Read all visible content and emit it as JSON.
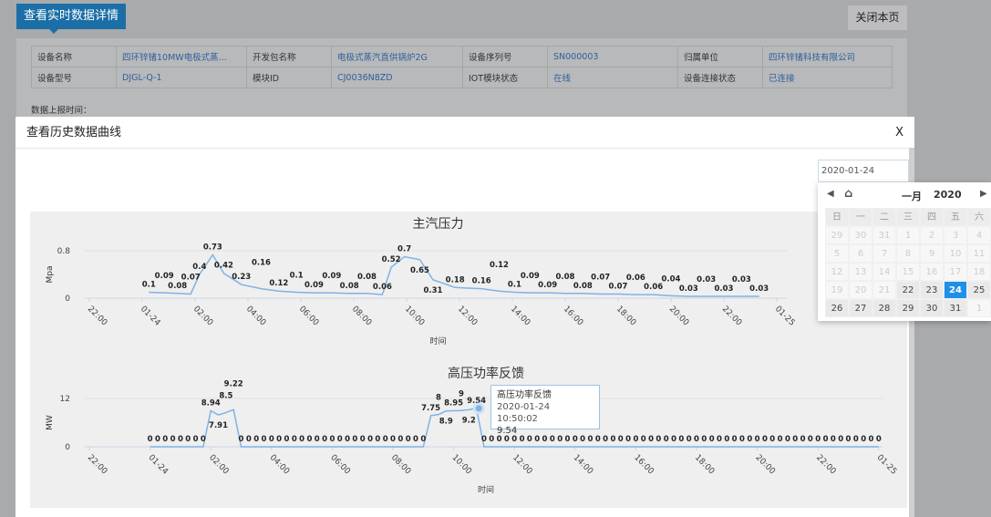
{
  "header": {
    "realtime_btn": "查看实时数据详情",
    "close_page": "关闭本页"
  },
  "info_table": [
    [
      {
        "k": "设备名称",
        "v": "四环锌锗10MW电极式蒸..."
      },
      {
        "k": "开发包名称",
        "v": "电极式蒸汽直供锅炉2G"
      },
      {
        "k": "设备序列号",
        "v": "SN000003"
      },
      {
        "k": "归属单位",
        "v": "四环锌锗科技有限公司"
      }
    ],
    [
      {
        "k": "设备型号",
        "v": "DJGL-Q-1"
      },
      {
        "k": "模块ID",
        "v": "CJ0036N8ZD"
      },
      {
        "k": "IOT模块状态",
        "v": "在线"
      },
      {
        "k": "设备连接状态",
        "v": "已连接"
      }
    ]
  ],
  "report_time_label": "数据上报时间：",
  "modal": {
    "title": "查看历史数据曲线",
    "close": "X"
  },
  "date_input": {
    "value": "2020-01-24"
  },
  "calendar": {
    "month": "一月",
    "year": "2020",
    "weekdays": [
      "日",
      "一",
      "二",
      "三",
      "四",
      "五",
      "六"
    ],
    "days": [
      [
        "29",
        "30",
        "31",
        "1",
        "2",
        "3",
        "4"
      ],
      [
        "5",
        "6",
        "7",
        "8",
        "9",
        "10",
        "11"
      ],
      [
        "12",
        "13",
        "14",
        "15",
        "16",
        "17",
        "18"
      ],
      [
        "19",
        "20",
        "21",
        "22",
        "23",
        "24",
        "25"
      ],
      [
        "26",
        "27",
        "28",
        "29",
        "30",
        "31",
        "1"
      ]
    ],
    "enabled_from": "22",
    "selected": "24"
  },
  "colors": {
    "accent": "#1b6fa6",
    "line": "#7fb2e5",
    "selected": "#1e90e8"
  },
  "chart_data": [
    {
      "type": "line",
      "title": "主汽压力",
      "ylabel": "Mpa",
      "xlabel": "时间",
      "ylim": [
        0,
        0.8
      ],
      "yticks": [
        "0",
        "0.8"
      ],
      "xticks": [
        "22:00",
        "01-24",
        "02:00",
        "04:00",
        "06:00",
        "08:00",
        "10:00",
        "12:00",
        "14:00",
        "16:00",
        "18:00",
        "20:00",
        "22:00",
        "01-25"
      ],
      "points": [
        [
          "00:15",
          0.1
        ],
        [
          "00:50",
          0.09
        ],
        [
          "01:20",
          0.08
        ],
        [
          "01:50",
          0.07
        ],
        [
          "02:10",
          0.4
        ],
        [
          "02:40",
          0.73
        ],
        [
          "03:05",
          0.42
        ],
        [
          "03:45",
          0.23
        ],
        [
          "04:30",
          0.16
        ],
        [
          "05:10",
          0.12
        ],
        [
          "05:50",
          0.1
        ],
        [
          "06:30",
          0.09
        ],
        [
          "07:10",
          0.09
        ],
        [
          "07:50",
          0.08
        ],
        [
          "08:30",
          0.08
        ],
        [
          "09:05",
          0.06
        ],
        [
          "09:25",
          0.52
        ],
        [
          "09:55",
          0.7
        ],
        [
          "10:30",
          0.65
        ],
        [
          "11:00",
          0.31
        ],
        [
          "11:50",
          0.18
        ],
        [
          "12:50",
          0.16
        ],
        [
          "13:30",
          0.12
        ],
        [
          "14:05",
          0.1
        ],
        [
          "14:40",
          0.09
        ],
        [
          "15:20",
          0.09
        ],
        [
          "16:00",
          0.08
        ],
        [
          "16:40",
          0.08
        ],
        [
          "17:20",
          0.07
        ],
        [
          "18:00",
          0.07
        ],
        [
          "18:40",
          0.06
        ],
        [
          "19:20",
          0.06
        ],
        [
          "20:00",
          0.04
        ],
        [
          "20:40",
          0.03
        ],
        [
          "21:20",
          0.03
        ],
        [
          "22:00",
          0.03
        ],
        [
          "22:40",
          0.03
        ],
        [
          "23:20",
          0.03
        ]
      ]
    },
    {
      "type": "line",
      "title": "高压功率反馈",
      "ylabel": "MW",
      "xlabel": "时间",
      "ylim": [
        0,
        12
      ],
      "yticks": [
        "0",
        "12"
      ],
      "xticks": [
        "22:00",
        "01-24",
        "02:00",
        "04:00",
        "06:00",
        "08:00",
        "10:00",
        "12:00",
        "14:00",
        "16:00",
        "18:00",
        "20:00",
        "22:00",
        "01-25"
      ],
      "start": "00:00",
      "step_minutes": 15,
      "values": [
        0,
        0,
        0,
        0,
        0,
        0,
        0,
        0,
        8.94,
        7.91,
        8.5,
        9.22,
        0,
        0,
        0,
        0,
        0,
        0,
        0,
        0,
        0,
        0,
        0,
        0,
        0,
        0,
        0,
        0,
        0,
        0,
        0,
        0,
        0,
        0,
        0,
        0,
        0,
        7.75,
        8.0,
        8.9,
        8.95,
        9.0,
        9.2,
        9.54,
        0,
        0,
        0,
        0,
        0,
        0,
        0,
        0,
        0,
        0,
        0,
        0,
        0,
        0,
        0,
        0,
        0,
        0,
        0,
        0,
        0,
        0,
        0,
        0,
        0,
        0,
        0,
        0,
        0,
        0,
        0,
        0,
        0,
        0,
        0,
        0,
        0,
        0,
        0,
        0,
        0,
        0,
        0,
        0,
        0,
        0,
        0,
        0,
        0,
        0,
        0,
        0,
        0
      ],
      "tooltip": {
        "series": "高压功率反馈",
        "time": "2020-01-24 10:50:02",
        "value": "9.54"
      }
    }
  ]
}
